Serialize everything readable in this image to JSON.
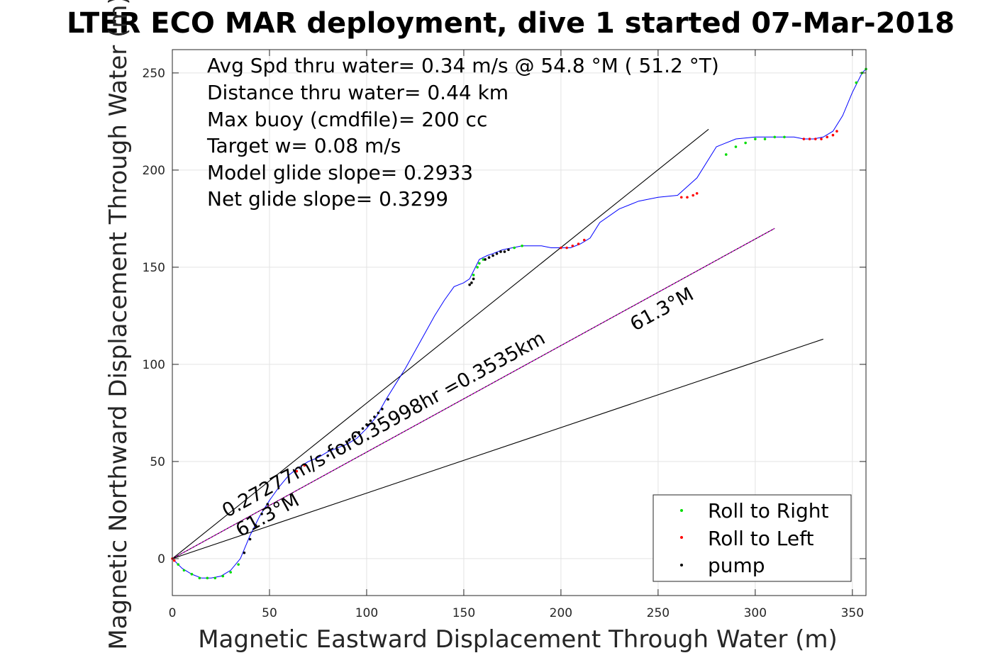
{
  "chart_data": {
    "type": "line",
    "title": "LTER ECO MAR deployment, dive 1 started 07-Mar-2018",
    "xlabel": "Magnetic Eastward Displacement Through Water (m)",
    "ylabel": "Magnetic Northward Displacement Through Water (m)",
    "xlim": [
      0,
      357
    ],
    "ylim": [
      -19,
      262
    ],
    "xticks": [
      0,
      50,
      100,
      150,
      200,
      250,
      300,
      350
    ],
    "yticks": [
      0,
      50,
      100,
      150,
      200,
      250
    ],
    "grid": true,
    "legend_position": "bottom-right",
    "stats": [
      "Avg Spd thru water=  0.34 m/s @  54.8 °M ( 51.2 °T)",
      "Distance thru water=  0.44 km",
      "Max buoy (cmdfile)= 200 cc",
      "Target w= 0.08 m/s",
      "Model glide slope= 0.2933",
      "Net glide slope= 0.3299"
    ],
    "annotations": [
      {
        "text": "0.27277m/s for0.35998hr =0.3535km",
        "x": 28,
        "y": 21,
        "angle_deg": 28.8
      },
      {
        "text": "61.3°M",
        "x": 35,
        "y": 11,
        "angle_deg": 28.8
      },
      {
        "text": "61.3°M",
        "x": 238,
        "y": 117,
        "angle_deg": 28.8
      }
    ],
    "reference_lines": [
      {
        "name": "upper",
        "color": "#000000",
        "x": [
          0,
          276
        ],
        "y": [
          0,
          221
        ]
      },
      {
        "name": "heading",
        "color": "#000000",
        "x": [
          0,
          310
        ],
        "y": [
          0,
          170
        ]
      },
      {
        "name": "heading-overlay",
        "color": "#cc00cc",
        "x": [
          0,
          310
        ],
        "y": [
          0,
          170
        ]
      },
      {
        "name": "lower",
        "color": "#000000",
        "x": [
          0,
          335
        ],
        "y": [
          0,
          113
        ]
      }
    ],
    "track": {
      "color": "#0000ff",
      "x": [
        0,
        5,
        10,
        15,
        20,
        25,
        30,
        35,
        40,
        45,
        50,
        55,
        60,
        65,
        70,
        75,
        80,
        85,
        90,
        95,
        100,
        105,
        110,
        115,
        120,
        125,
        130,
        135,
        140,
        145,
        150,
        153,
        155,
        157,
        158,
        160,
        162,
        165,
        170,
        175,
        180,
        185,
        190,
        195,
        200,
        205,
        210,
        215,
        220,
        230,
        240,
        250,
        260,
        270,
        280,
        290,
        300,
        310,
        320,
        325,
        330,
        335,
        340,
        345,
        350,
        355,
        357
      ],
      "y": [
        0,
        -5,
        -8,
        -10,
        -10,
        -9,
        -6,
        0,
        12,
        22,
        30,
        37,
        43,
        47,
        50,
        52,
        55,
        57,
        59,
        62,
        67,
        73,
        82,
        90,
        98,
        107,
        116,
        125,
        133,
        140,
        142,
        144,
        148,
        152,
        154,
        155,
        156,
        157,
        159,
        160,
        161,
        161,
        161,
        160,
        160,
        160,
        162,
        165,
        173,
        180,
        184,
        186,
        187,
        196,
        212,
        216,
        217,
        217,
        217,
        216,
        216,
        217,
        220,
        228,
        240,
        250,
        252
      ]
    },
    "series": [
      {
        "name": "Roll to Right",
        "color": "#00dd00",
        "x": [
          3,
          6,
          10,
          14,
          18,
          22,
          26,
          30,
          34,
          155,
          157,
          158,
          160,
          176,
          180,
          285,
          290,
          295,
          300,
          305,
          310,
          315,
          352,
          355,
          357
        ],
        "y": [
          -3,
          -6,
          -8,
          -10,
          -10,
          -10,
          -9,
          -7,
          -3,
          146,
          150,
          152,
          154,
          160,
          161,
          208,
          212,
          214,
          216,
          216,
          217,
          217,
          245,
          250,
          252
        ]
      },
      {
        "name": "Roll to Left",
        "color": "#ff0000",
        "x": [
          0,
          1,
          64,
          68,
          200,
          203,
          206,
          209,
          212,
          262,
          265,
          268,
          270,
          325,
          328,
          331,
          334,
          337,
          340,
          342
        ],
        "y": [
          0,
          -1,
          45,
          48,
          160,
          160,
          161,
          162,
          164,
          186,
          186,
          187,
          188,
          216,
          216,
          216,
          216,
          217,
          218,
          220
        ]
      },
      {
        "name": "pump",
        "color": "#000000",
        "x": [
          37,
          40,
          43,
          46,
          49,
          80,
          85,
          88,
          91,
          94,
          96,
          98,
          100,
          102,
          104,
          106,
          108,
          111,
          153,
          154,
          155,
          161,
          163,
          165,
          167,
          169,
          171,
          173
        ],
        "y": [
          3,
          10,
          17,
          23,
          28,
          53,
          56,
          58,
          61,
          63,
          65,
          67,
          69,
          71,
          73,
          75,
          77,
          82,
          141,
          142,
          144,
          154,
          155,
          156,
          157,
          158,
          158,
          159
        ]
      }
    ]
  }
}
